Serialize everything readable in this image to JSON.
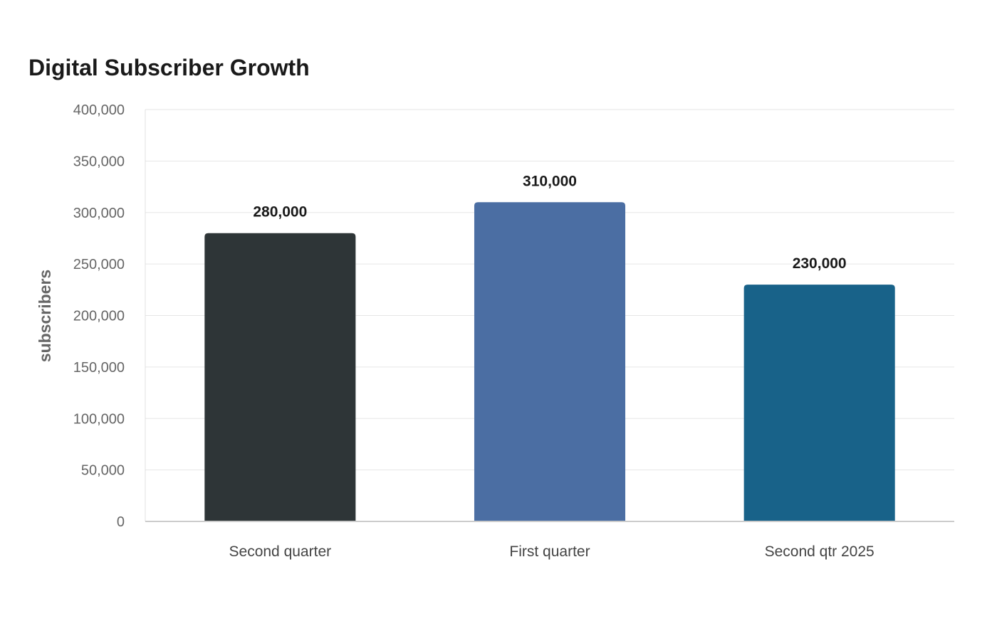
{
  "chart_data": {
    "type": "bar",
    "title": "Digital Subscriber Growth",
    "xlabel": "",
    "ylabel": "subscribers",
    "categories": [
      "Second quarter",
      "First quarter",
      "Second qtr 2025"
    ],
    "values": [
      280000,
      310000,
      230000
    ],
    "value_labels": [
      "280,000",
      "310,000",
      "230,000"
    ],
    "colors": [
      "#2e3537",
      "#4b6ea3",
      "#186289"
    ],
    "ylim": [
      0,
      400000
    ],
    "yticks": [
      0,
      50000,
      100000,
      150000,
      200000,
      250000,
      300000,
      350000,
      400000
    ],
    "ytick_labels": [
      "0",
      "50,000",
      "100,000",
      "150,000",
      "200,000",
      "250,000",
      "300,000",
      "350,000",
      "400,000"
    ],
    "grid": true,
    "legend": "none"
  }
}
